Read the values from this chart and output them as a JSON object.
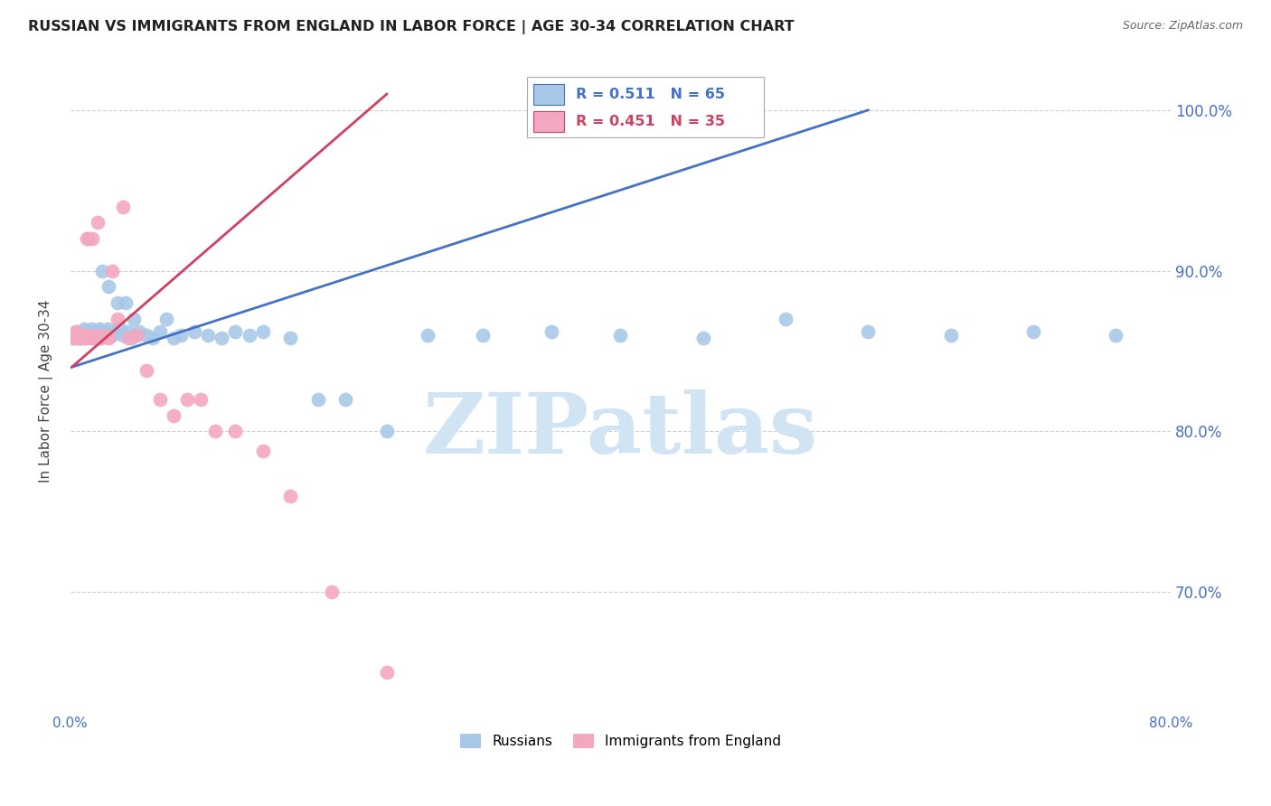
{
  "title": "RUSSIAN VS IMMIGRANTS FROM ENGLAND IN LABOR FORCE | AGE 30-34 CORRELATION CHART",
  "source": "Source: ZipAtlas.com",
  "ylabel": "In Labor Force | Age 30-34",
  "xlim": [
    0.0,
    0.8
  ],
  "ylim": [
    0.625,
    1.025
  ],
  "xticks": [
    0.0,
    0.1,
    0.2,
    0.3,
    0.4,
    0.5,
    0.6,
    0.7,
    0.8
  ],
  "xticklabels": [
    "0.0%",
    "",
    "",
    "",
    "",
    "",
    "",
    "",
    "80.0%"
  ],
  "yticks_right": [
    0.7,
    0.8,
    0.9,
    1.0
  ],
  "ytick_right_labels": [
    "70.0%",
    "80.0%",
    "90.0%",
    "100.0%"
  ],
  "blue_color": "#A8C8E8",
  "pink_color": "#F4A8C0",
  "blue_line_color": "#4472C4",
  "pink_line_color": "#D04060",
  "legend_blue_r": "R = 0.511",
  "legend_blue_n": "N = 65",
  "legend_pink_r": "R = 0.451",
  "legend_pink_n": "N = 35",
  "watermark": "ZIPatlas",
  "watermark_color": "#D0E4F4",
  "grid_color": "#BBBBBB",
  "title_color": "#222222",
  "axis_color": "#4472C4",
  "blue_x": [
    0.002,
    0.003,
    0.004,
    0.005,
    0.006,
    0.007,
    0.008,
    0.009,
    0.01,
    0.01,
    0.011,
    0.012,
    0.013,
    0.014,
    0.015,
    0.015,
    0.016,
    0.017,
    0.018,
    0.019,
    0.02,
    0.021,
    0.022,
    0.023,
    0.025,
    0.026,
    0.027,
    0.028,
    0.03,
    0.032,
    0.034,
    0.036,
    0.038,
    0.04,
    0.042,
    0.044,
    0.046,
    0.048,
    0.05,
    0.055,
    0.06,
    0.065,
    0.07,
    0.075,
    0.08,
    0.09,
    0.1,
    0.11,
    0.12,
    0.13,
    0.14,
    0.16,
    0.18,
    0.2,
    0.23,
    0.26,
    0.3,
    0.35,
    0.4,
    0.46,
    0.52,
    0.58,
    0.64,
    0.7,
    0.76
  ],
  "blue_y": [
    0.858,
    0.86,
    0.862,
    0.86,
    0.858,
    0.862,
    0.858,
    0.86,
    0.862,
    0.864,
    0.86,
    0.858,
    0.862,
    0.86,
    0.864,
    0.858,
    0.862,
    0.86,
    0.858,
    0.862,
    0.86,
    0.864,
    0.858,
    0.9,
    0.862,
    0.86,
    0.864,
    0.89,
    0.86,
    0.862,
    0.88,
    0.864,
    0.86,
    0.88,
    0.862,
    0.858,
    0.87,
    0.86,
    0.862,
    0.86,
    0.858,
    0.862,
    0.87,
    0.858,
    0.86,
    0.862,
    0.86,
    0.858,
    0.862,
    0.86,
    0.862,
    0.858,
    0.82,
    0.82,
    0.8,
    0.86,
    0.86,
    0.862,
    0.86,
    0.858,
    0.87,
    0.862,
    0.86,
    0.862,
    0.86
  ],
  "pink_x": [
    0.002,
    0.003,
    0.004,
    0.005,
    0.006,
    0.007,
    0.008,
    0.009,
    0.01,
    0.011,
    0.012,
    0.013,
    0.015,
    0.016,
    0.018,
    0.02,
    0.022,
    0.025,
    0.028,
    0.03,
    0.034,
    0.038,
    0.042,
    0.048,
    0.055,
    0.065,
    0.075,
    0.085,
    0.095,
    0.105,
    0.12,
    0.14,
    0.16,
    0.19,
    0.23
  ],
  "pink_y": [
    0.858,
    0.86,
    0.862,
    0.858,
    0.858,
    0.86,
    0.858,
    0.86,
    0.858,
    0.86,
    0.92,
    0.92,
    0.858,
    0.92,
    0.86,
    0.93,
    0.858,
    0.86,
    0.858,
    0.9,
    0.87,
    0.94,
    0.858,
    0.86,
    0.838,
    0.82,
    0.81,
    0.82,
    0.82,
    0.8,
    0.8,
    0.788,
    0.76,
    0.7,
    0.65
  ],
  "blue_line_x": [
    0.001,
    0.58
  ],
  "blue_line_y": [
    0.84,
    1.0
  ],
  "pink_line_x": [
    0.001,
    0.23
  ],
  "pink_line_y": [
    0.84,
    1.01
  ]
}
